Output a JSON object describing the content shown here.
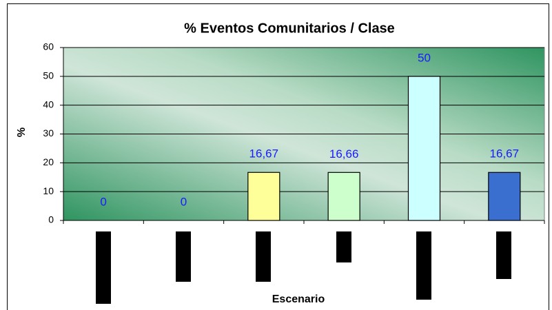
{
  "chart_data": {
    "type": "bar",
    "title": "% Eventos Comunitarios / Clase",
    "xlabel": "Escenario",
    "ylabel": "%",
    "categories": [
      null,
      null,
      null,
      null,
      null,
      null
    ],
    "values": [
      0,
      0,
      16.67,
      16.66,
      50,
      16.67
    ],
    "value_labels": [
      "0",
      "0",
      "16,67",
      "16,66",
      "50",
      "16,67"
    ],
    "colors": [
      "#9999ff",
      "#993366",
      "#ffff99",
      "#ccffcc",
      "#ccffff",
      "#3a6fd0"
    ],
    "ylim": [
      0,
      60
    ],
    "yticks": [
      0,
      10,
      20,
      30,
      40,
      50,
      60
    ],
    "grid": true
  }
}
